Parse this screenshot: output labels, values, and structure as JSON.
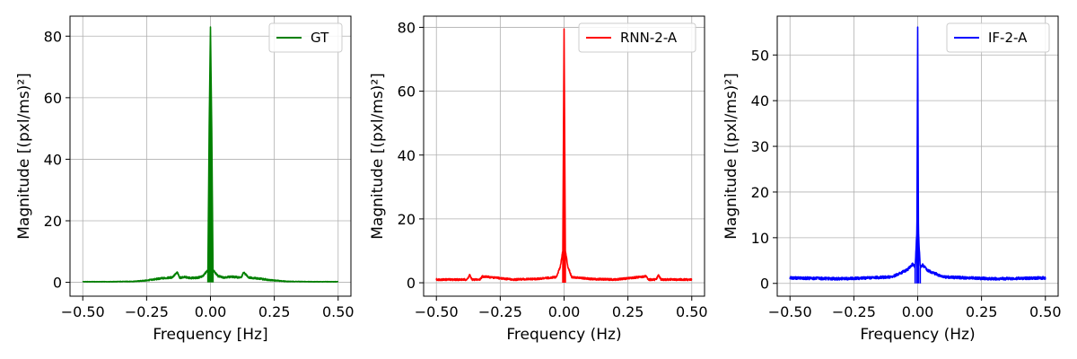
{
  "chart_data": [
    {
      "type": "line",
      "xlabel": "Frequency [Hz]",
      "ylabel": "Magnitude [(pxl/ms)²]",
      "xlim": [
        -0.55,
        0.55
      ],
      "ylim": [
        -4.5,
        86.5
      ],
      "xticks": [
        -0.5,
        -0.25,
        0.0,
        0.25,
        0.5
      ],
      "xtick_labels": [
        "−0.50",
        "−0.25",
        "0.00",
        "0.25",
        "0.50"
      ],
      "yticks": [
        0,
        20,
        40,
        60,
        80
      ],
      "ytick_labels": [
        "0",
        "20",
        "40",
        "60",
        "80"
      ],
      "grid": true,
      "legend_position": "top-right",
      "series": [
        {
          "name": "GT",
          "color": "#008000",
          "x": [
            -0.5,
            -0.4,
            -0.3,
            -0.25,
            -0.2,
            -0.15,
            -0.13,
            -0.12,
            -0.1,
            -0.08,
            -0.05,
            -0.03,
            -0.01,
            -0.005,
            0.0,
            0.005,
            0.01,
            0.03,
            0.05,
            0.08,
            0.1,
            0.12,
            0.13,
            0.15,
            0.2,
            0.25,
            0.3,
            0.4,
            0.5
          ],
          "y": [
            0.2,
            0.2,
            0.3,
            0.6,
            1.2,
            1.6,
            3.2,
            1.5,
            1.7,
            1.4,
            1.5,
            2.0,
            4.0,
            50.5,
            82.7,
            50.0,
            4.0,
            2.0,
            1.6,
            1.8,
            1.7,
            1.5,
            3.2,
            1.6,
            1.1,
            0.6,
            0.3,
            0.2,
            0.2
          ]
        }
      ]
    },
    {
      "type": "line",
      "xlabel": "Frequency (Hz)",
      "ylabel": "Magnitude [(pxl/ms)²]",
      "xlim": [
        -0.55,
        0.55
      ],
      "ylim": [
        -4.2,
        83.5
      ],
      "xticks": [
        -0.5,
        -0.25,
        0.0,
        0.25,
        0.5
      ],
      "xtick_labels": [
        "−0.50",
        "−0.25",
        "0.00",
        "0.25",
        "0.50"
      ],
      "yticks": [
        0,
        20,
        40,
        60,
        80
      ],
      "ytick_labels": [
        "0",
        "20",
        "40",
        "60",
        "80"
      ],
      "grid": true,
      "legend_position": "top-right",
      "series": [
        {
          "name": "RNN-2-A",
          "color": "#ff0000",
          "x": [
            -0.5,
            -0.38,
            -0.37,
            -0.36,
            -0.33,
            -0.32,
            -0.2,
            -0.1,
            -0.03,
            -0.015,
            -0.005,
            0.0,
            0.005,
            0.015,
            0.03,
            0.1,
            0.2,
            0.32,
            0.33,
            0.36,
            0.37,
            0.38,
            0.5
          ],
          "y": [
            1.0,
            1.0,
            2.4,
            1.0,
            1.0,
            2.0,
            1.0,
            1.2,
            1.8,
            5.0,
            10.0,
            79.3,
            10.0,
            5.0,
            1.8,
            1.2,
            1.0,
            2.0,
            1.0,
            1.0,
            2.4,
            1.0,
            1.0
          ]
        }
      ]
    },
    {
      "type": "line",
      "xlabel": "Frequency (Hz)",
      "ylabel": "Magnitude [(pxl/ms)²]",
      "xlim": [
        -0.55,
        0.55
      ],
      "ylim": [
        -2.8,
        58.5
      ],
      "xticks": [
        -0.5,
        -0.25,
        0.0,
        0.25,
        0.5
      ],
      "xtick_labels": [
        "−0.50",
        "−0.25",
        "0.00",
        "0.25",
        "0.50"
      ],
      "yticks": [
        0,
        10,
        20,
        30,
        40,
        50
      ],
      "ytick_labels": [
        "0",
        "10",
        "20",
        "30",
        "40",
        "50"
      ],
      "grid": true,
      "legend_position": "top-right",
      "series": [
        {
          "name": "IF-2-A",
          "color": "#0000ff",
          "x": [
            -0.5,
            -0.3,
            -0.1,
            -0.04,
            -0.02,
            -0.01,
            -0.003,
            0.0,
            0.003,
            0.01,
            0.02,
            0.04,
            0.1,
            0.3,
            0.5
          ],
          "y": [
            1.2,
            1.0,
            1.4,
            3.0,
            4.2,
            3.5,
            11.5,
            56.0,
            11.0,
            3.5,
            4.0,
            2.8,
            1.4,
            1.0,
            1.2
          ]
        }
      ]
    }
  ]
}
